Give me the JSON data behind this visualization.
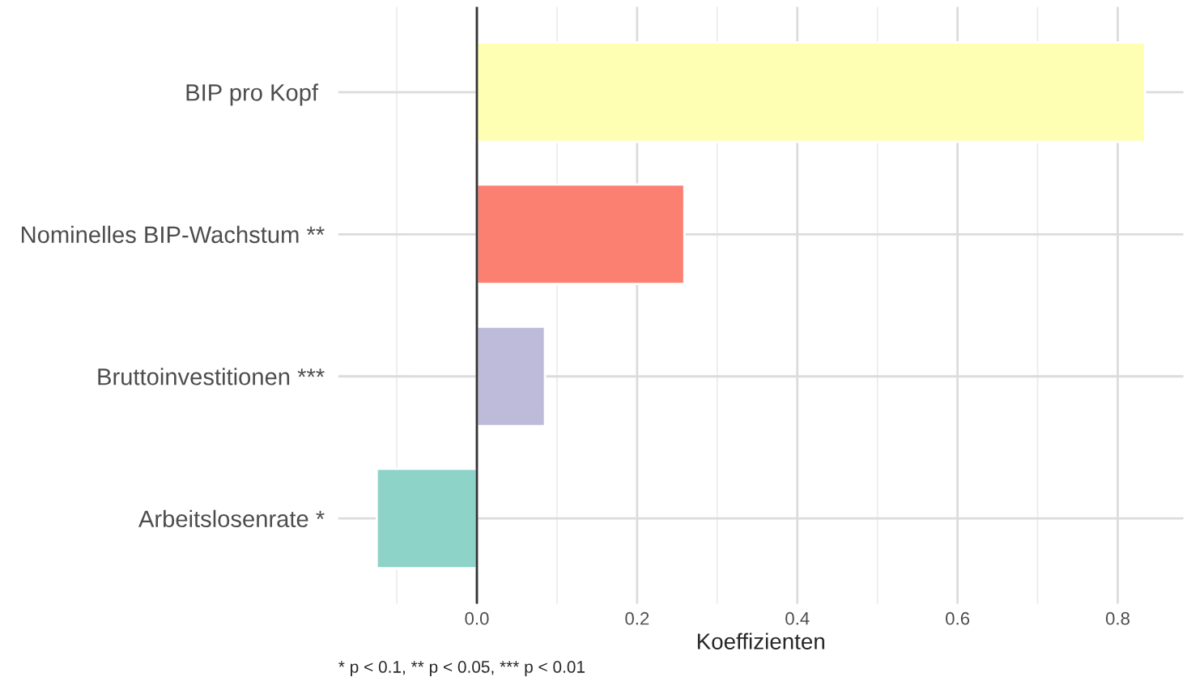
{
  "chart_data": {
    "type": "bar",
    "orientation": "horizontal",
    "categories": [
      "BIP pro Kopf ",
      "Nominelles BIP-Wachstum **",
      "Bruttoinvestitionen ***",
      "Arbeitslosenrate *"
    ],
    "values": [
      0.834,
      0.259,
      0.085,
      -0.125
    ],
    "colors": [
      "#ffffb3",
      "#fb8072",
      "#bebada",
      "#8dd3c7"
    ],
    "xlim": [
      -0.173,
      0.882
    ],
    "xticks": [
      {
        "value": -0.1,
        "label": null
      },
      {
        "value": 0,
        "label": "0.0"
      },
      {
        "value": 0.1,
        "label": null
      },
      0.2,
      {
        "value": 0.3,
        "label": null
      },
      0.4,
      {
        "value": 0.5,
        "label": null
      },
      0.6,
      {
        "value": 0.7,
        "label": null
      },
      0.8
    ],
    "xlabel": "Koeffizienten",
    "ref_lines": [
      {
        "axis": "x",
        "value": 0,
        "color": "#333333"
      }
    ],
    "annotations": [
      "* p < 0.1, ** p < 0.05, *** p < 0.01"
    ],
    "grid": true
  }
}
